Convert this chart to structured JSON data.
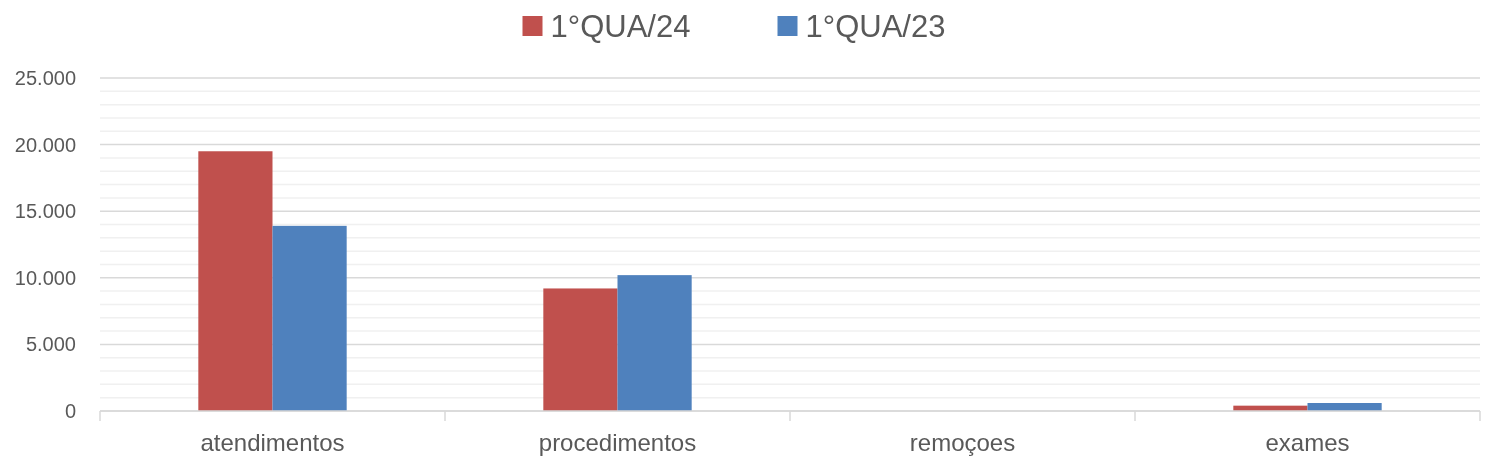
{
  "chart_data": {
    "type": "bar",
    "categories": [
      "atendimentos",
      "procedimentos",
      "remoçoes",
      "exames"
    ],
    "series": [
      {
        "name": "1°QUA/24",
        "color": "#c0504d",
        "values": [
          19500,
          9200,
          null,
          400
        ]
      },
      {
        "name": "1°QUA/23",
        "color": "#4f81bd",
        "values": [
          13900,
          10200,
          null,
          600
        ]
      }
    ],
    "ylim": [
      0,
      25000
    ],
    "yticks": [
      0,
      {
        "value": 1000,
        "label": null
      },
      {
        "value": 2000,
        "label": null
      },
      {
        "value": 3000,
        "label": null
      },
      {
        "value": 4000,
        "label": null
      },
      {
        "value": 5000,
        "label": "5.000"
      },
      {
        "value": 6000,
        "label": null
      },
      {
        "value": 7000,
        "label": null
      },
      {
        "value": 8000,
        "label": null
      },
      {
        "value": 9000,
        "label": null
      },
      {
        "value": 10000,
        "label": "10.000"
      },
      {
        "value": 11000,
        "label": null
      },
      {
        "value": 12000,
        "label": null
      },
      {
        "value": 13000,
        "label": null
      },
      {
        "value": 14000,
        "label": null
      },
      {
        "value": 15000,
        "label": "15.000"
      },
      {
        "value": 16000,
        "label": null
      },
      {
        "value": 17000,
        "label": null
      },
      {
        "value": 18000,
        "label": null
      },
      {
        "value": 19000,
        "label": null
      },
      {
        "value": 20000,
        "label": "20.000"
      },
      {
        "value": 21000,
        "label": null
      },
      {
        "value": 22000,
        "label": null
      },
      {
        "value": 23000,
        "label": null
      },
      {
        "value": 24000,
        "label": null
      },
      {
        "value": 25000,
        "label": "25.000"
      }
    ],
    "grid": "y",
    "legend": "top"
  }
}
